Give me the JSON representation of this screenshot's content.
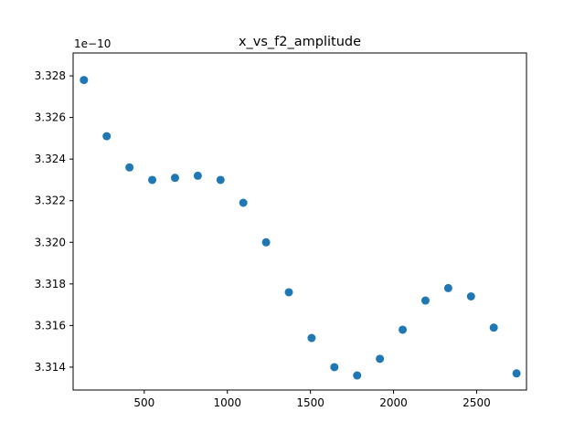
{
  "chart_data": {
    "type": "scatter",
    "title": "x_vs_f2_amplitude",
    "xlabel": "",
    "ylabel": "",
    "y_scale_label": "1e−10",
    "xlim": [
      72,
      2800
    ],
    "ylim": [
      3.3129,
      3.3291
    ],
    "x_ticks": [
      500,
      1000,
      1500,
      2000,
      2500
    ],
    "x_tick_labels": [
      "500",
      "1000",
      "1500",
      "2000",
      "2500"
    ],
    "y_ticks": [
      3.314,
      3.316,
      3.318,
      3.32,
      3.322,
      3.324,
      3.326,
      3.328
    ],
    "y_tick_labels": [
      "3.314",
      "3.316",
      "3.318",
      "3.320",
      "3.322",
      "3.324",
      "3.326",
      "3.328"
    ],
    "grid": false,
    "marker_color": "#1f77b4",
    "points": [
      {
        "x": 137,
        "y": 3.3278
      },
      {
        "x": 274,
        "y": 3.3251
      },
      {
        "x": 411,
        "y": 3.3236
      },
      {
        "x": 548,
        "y": 3.323
      },
      {
        "x": 685,
        "y": 3.3231
      },
      {
        "x": 822,
        "y": 3.3232
      },
      {
        "x": 959,
        "y": 3.323
      },
      {
        "x": 1096,
        "y": 3.3219
      },
      {
        "x": 1233,
        "y": 3.32
      },
      {
        "x": 1370,
        "y": 3.3176
      },
      {
        "x": 1507,
        "y": 3.3154
      },
      {
        "x": 1644,
        "y": 3.314
      },
      {
        "x": 1781,
        "y": 3.3136
      },
      {
        "x": 1918,
        "y": 3.3144
      },
      {
        "x": 2055,
        "y": 3.3158
      },
      {
        "x": 2192,
        "y": 3.3172
      },
      {
        "x": 2329,
        "y": 3.3178
      },
      {
        "x": 2466,
        "y": 3.3174
      },
      {
        "x": 2603,
        "y": 3.3159
      },
      {
        "x": 2740,
        "y": 3.3137
      }
    ]
  }
}
